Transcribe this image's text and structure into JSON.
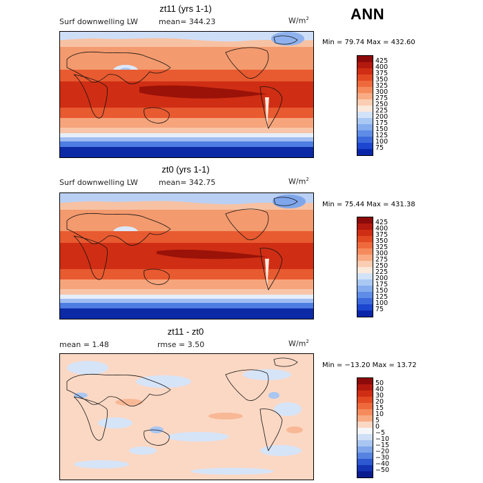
{
  "season": "ANN",
  "units_base": "W/m",
  "units_exp": "2",
  "panels": [
    {
      "title": "zt11 (yrs 1-1)",
      "variable": "Surf downwelling LW",
      "stat_left": "mean= 344.23",
      "stat_right": "",
      "minmax": "Min =  79.74 Max = 432.60",
      "levels": [
        "425",
        "400",
        "375",
        "350",
        "325",
        "300",
        "275",
        "250",
        "225",
        "200",
        "175",
        "150",
        "125",
        "100",
        "75"
      ],
      "colors": [
        "#8c0a0a",
        "#b3190e",
        "#cf2e14",
        "#e24a24",
        "#ee6a3c",
        "#f58b5c",
        "#f9ab84",
        "#fbcdb2",
        "#fbe9dc",
        "#d2e2f8",
        "#aac8f4",
        "#84acee",
        "#5e8ce6",
        "#3c6adc",
        "#1c46cf",
        "#0a26a8"
      ]
    },
    {
      "title": "zt0 (yrs 1-1)",
      "variable": "Surf downwelling LW",
      "stat_left": "mean= 342.75",
      "stat_right": "",
      "minmax": "Min =  75.44 Max = 431.38",
      "levels": [
        "425",
        "400",
        "375",
        "350",
        "325",
        "300",
        "275",
        "250",
        "225",
        "200",
        "175",
        "150",
        "125",
        "100",
        "75"
      ],
      "colors": [
        "#8c0a0a",
        "#b3190e",
        "#cf2e14",
        "#e24a24",
        "#ee6a3c",
        "#f58b5c",
        "#f9ab84",
        "#fbcdb2",
        "#fbe9dc",
        "#d2e2f8",
        "#aac8f4",
        "#84acee",
        "#5e8ce6",
        "#3c6adc",
        "#1c46cf",
        "#0a26a8"
      ]
    },
    {
      "title": "zt11 - zt0",
      "variable": "",
      "stat_left": "mean =    1.48",
      "stat_right": "rmse =    3.50",
      "minmax": "Min = −13.20 Max =   13.72",
      "levels": [
        "50",
        "40",
        "30",
        "20",
        "15",
        "10",
        "5",
        "0",
        "−5",
        "−10",
        "−15",
        "−20",
        "−30",
        "−40",
        "−50"
      ],
      "colors": [
        "#8c0a0a",
        "#b3190e",
        "#cf2e14",
        "#e24a24",
        "#ee6a3c",
        "#f58b5c",
        "#f9ab84",
        "#fbd8c4",
        "#f4f6fb",
        "#cfe0f6",
        "#a9c6f2",
        "#7fa6ea",
        "#5682e0",
        "#2e58d0",
        "#1434b4",
        "#0a1c8e"
      ]
    }
  ]
}
